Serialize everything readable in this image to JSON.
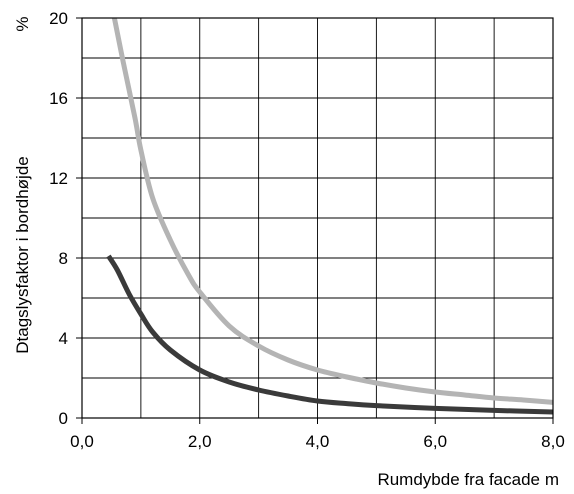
{
  "chart_data": {
    "type": "line",
    "xlabel": "Rumdybde fra facade",
    "xunit": "m",
    "ylabel": "Dtagslysfaktor i bordhøjde",
    "yunit": "%",
    "xlim": [
      0,
      8
    ],
    "ylim": [
      0,
      20
    ],
    "x_ticks": [
      "0,0",
      "2,0",
      "4,0",
      "6,0",
      "8,0"
    ],
    "x_tick_values": [
      0,
      2,
      4,
      6,
      8
    ],
    "y_ticks": [
      "0",
      "4",
      "8",
      "12",
      "16",
      "20"
    ],
    "y_tick_values": [
      0,
      4,
      8,
      12,
      16,
      20
    ],
    "grid": true,
    "series": [
      {
        "color": "#b4b4b4",
        "points": [
          [
            0.55,
            20
          ],
          [
            0.7,
            17.8
          ],
          [
            0.9,
            15.0
          ],
          [
            1.0,
            13.4
          ],
          [
            1.2,
            11.0
          ],
          [
            1.5,
            8.9
          ],
          [
            1.8,
            7.2
          ],
          [
            2.0,
            6.3
          ],
          [
            2.5,
            4.6
          ],
          [
            3.0,
            3.6
          ],
          [
            3.5,
            2.9
          ],
          [
            4.0,
            2.4
          ],
          [
            4.5,
            2.05
          ],
          [
            5.0,
            1.75
          ],
          [
            5.5,
            1.5
          ],
          [
            6.0,
            1.3
          ],
          [
            6.5,
            1.15
          ],
          [
            7.0,
            1.0
          ],
          [
            7.5,
            0.9
          ],
          [
            8.0,
            0.78
          ]
        ]
      },
      {
        "color": "#3a3a3a",
        "points": [
          [
            0.45,
            8.1
          ],
          [
            0.6,
            7.4
          ],
          [
            0.8,
            6.2
          ],
          [
            1.0,
            5.2
          ],
          [
            1.2,
            4.3
          ],
          [
            1.5,
            3.4
          ],
          [
            2.0,
            2.4
          ],
          [
            2.5,
            1.8
          ],
          [
            3.0,
            1.4
          ],
          [
            3.5,
            1.1
          ],
          [
            4.0,
            0.85
          ],
          [
            4.5,
            0.72
          ],
          [
            5.0,
            0.62
          ],
          [
            6.0,
            0.48
          ],
          [
            7.0,
            0.38
          ],
          [
            8.0,
            0.3
          ]
        ]
      }
    ]
  }
}
